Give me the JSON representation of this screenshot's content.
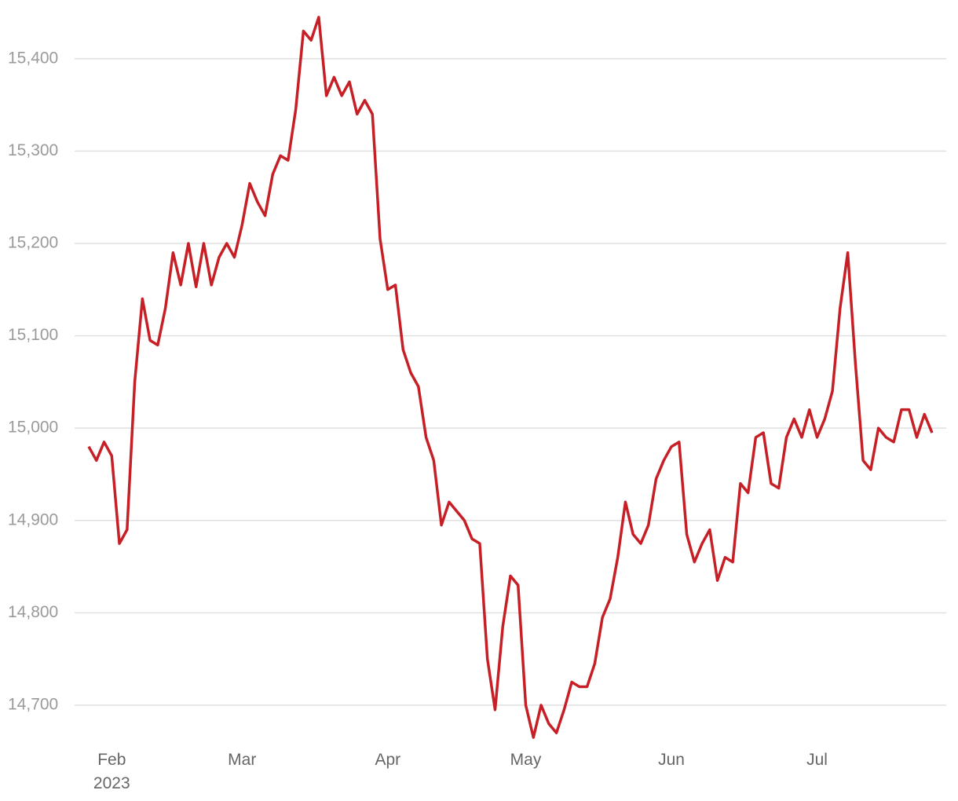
{
  "chart_data": {
    "type": "line",
    "categories": [
      null,
      null,
      null,
      "Feb\n2023",
      null,
      null,
      null,
      null,
      null,
      null,
      null,
      null,
      null,
      null,
      null,
      null,
      null,
      null,
      null,
      null,
      "Mar",
      null,
      null,
      null,
      null,
      null,
      null,
      null,
      null,
      null,
      null,
      null,
      null,
      null,
      null,
      null,
      null,
      null,
      null,
      "Apr",
      null,
      null,
      null,
      null,
      null,
      null,
      null,
      null,
      null,
      null,
      null,
      null,
      null,
      null,
      null,
      null,
      null,
      "May",
      null,
      null,
      null,
      null,
      null,
      null,
      null,
      null,
      null,
      null,
      null,
      null,
      null,
      null,
      null,
      null,
      null,
      null,
      "Jun",
      null,
      null,
      null,
      null,
      null,
      null,
      null,
      null,
      null,
      null,
      null,
      null,
      null,
      null,
      null,
      null,
      null,
      null,
      "Jul",
      null,
      null,
      null,
      null,
      null,
      null,
      null,
      null,
      null,
      null,
      null,
      null,
      null,
      null,
      null
    ],
    "series": [
      {
        "color": "#c62026",
        "values": [
          14980,
          14965,
          14985,
          14970,
          14875,
          14890,
          15050,
          15140,
          15095,
          15090,
          15130,
          15190,
          15155,
          15200,
          15153,
          15200,
          15155,
          15185,
          15200,
          15185,
          15220,
          15265,
          15245,
          15230,
          15275,
          15295,
          15290,
          15345,
          15430,
          15420,
          15445,
          15360,
          15380,
          15360,
          15375,
          15340,
          15355,
          15340,
          15205,
          15150,
          15155,
          15085,
          15060,
          15045,
          14990,
          14965,
          14895,
          14920,
          14910,
          14900,
          14880,
          14875,
          14750,
          14695,
          14785,
          14840,
          14830,
          14700,
          14665,
          14700,
          14680,
          14670,
          14695,
          14725,
          14720,
          14720,
          14745,
          14795,
          14815,
          14860,
          14920,
          14885,
          14875,
          14895,
          14945,
          14965,
          14980,
          14985,
          14885,
          14855,
          14875,
          14890,
          14835,
          14860,
          14855,
          14940,
          14930,
          14990,
          14995,
          14940,
          14935,
          14990,
          15010,
          14990,
          15020,
          14990,
          15010,
          15040,
          15130,
          15190,
          15070,
          14965,
          14955,
          15000,
          14990,
          14985,
          15020,
          15020,
          14990,
          15015,
          14995
        ]
      }
    ],
    "ylim": [
      14660,
      15450
    ],
    "yticks": [
      {
        "value": 14700,
        "label": "14,700"
      },
      {
        "value": 14800,
        "label": "14,800"
      },
      {
        "value": 14900,
        "label": "14,900"
      },
      {
        "value": 15000,
        "label": "15,000"
      },
      {
        "value": 15100,
        "label": "15,100"
      },
      {
        "value": 15200,
        "label": "15,200"
      },
      {
        "value": 15300,
        "label": "15,300"
      },
      {
        "value": 15400,
        "label": "15,400"
      }
    ],
    "grid": true
  }
}
